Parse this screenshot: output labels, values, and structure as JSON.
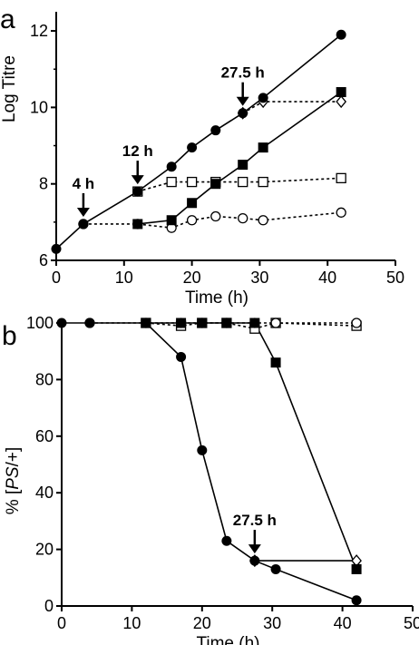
{
  "chart_data": [
    {
      "panel": "a",
      "type": "line",
      "xlabel": "Time (h)",
      "ylabel": "Log Titre",
      "xlim": [
        0,
        50
      ],
      "ylim": [
        6,
        12.5
      ],
      "xticks": [
        0,
        10,
        20,
        30,
        40,
        50
      ],
      "yticks": [
        6,
        8,
        10,
        12
      ],
      "grid": false,
      "legend": "none",
      "series": [
        {
          "marker": "filled-circle",
          "line": "solid",
          "x": [
            0,
            4,
            12,
            17,
            20,
            23.5,
            27.5,
            30.5,
            42
          ],
          "y": [
            6.3,
            6.95,
            7.8,
            8.45,
            8.95,
            9.4,
            9.85,
            10.25,
            11.9
          ]
        },
        {
          "marker": "filled-square",
          "line": "solid",
          "x": [
            12,
            17,
            20,
            23.5,
            27.5,
            30.5,
            42
          ],
          "y": [
            6.95,
            7.05,
            7.5,
            8.0,
            8.5,
            8.95,
            10.4
          ]
        },
        {
          "marker": "open-diamond",
          "line": "dashed",
          "x": [
            27.5,
            30.5,
            42
          ],
          "y": [
            9.85,
            10.15,
            10.15
          ]
        },
        {
          "marker": "open-square",
          "line": "dashed",
          "x": [
            12,
            17,
            20,
            23.5,
            27.5,
            30.5,
            42
          ],
          "y": [
            7.8,
            8.05,
            8.05,
            8.05,
            8.05,
            8.05,
            8.15
          ]
        },
        {
          "marker": "open-circle",
          "line": "dashed",
          "x": [
            4,
            12,
            17,
            20,
            23.5,
            27.5,
            30.5,
            42
          ],
          "y": [
            6.95,
            6.95,
            6.85,
            7.05,
            7.15,
            7.1,
            7.05,
            7.25
          ]
        }
      ],
      "annotations": [
        {
          "text": "4 h",
          "x": 4,
          "y": 6.95
        },
        {
          "text": "12 h",
          "x": 12,
          "y": 7.8
        },
        {
          "text": "27.5 h",
          "x": 27.5,
          "y": 9.85
        }
      ]
    },
    {
      "panel": "b",
      "type": "line",
      "xlabel": "Time (h)",
      "ylabel": "% [PS/+]",
      "xlim": [
        0,
        50
      ],
      "ylim": [
        0,
        100
      ],
      "xticks": [
        0,
        10,
        20,
        30,
        40,
        50
      ],
      "yticks": [
        0,
        20,
        40,
        60,
        80,
        100
      ],
      "grid": false,
      "legend": "none",
      "series": [
        {
          "marker": "filled-circle",
          "line": "solid",
          "x": [
            0,
            4,
            12,
            17,
            20,
            23.5,
            27.5,
            30.5,
            42
          ],
          "y": [
            100,
            100,
            100,
            88,
            55,
            23,
            16,
            13,
            2
          ]
        },
        {
          "marker": "filled-square",
          "line": "solid",
          "x": [
            12,
            17,
            20,
            23.5,
            27.5,
            30.5,
            42
          ],
          "y": [
            100,
            100,
            100,
            100,
            100,
            86,
            13
          ]
        },
        {
          "marker": "open-diamond",
          "line": "solid",
          "x": [
            27.5,
            42
          ],
          "y": [
            16,
            16
          ]
        },
        {
          "marker": "open-square",
          "line": "dashed",
          "x": [
            12,
            17,
            20,
            23.5,
            27.5,
            30.5,
            42
          ],
          "y": [
            100,
            99,
            100,
            100,
            98,
            100,
            99
          ]
        },
        {
          "marker": "open-circle",
          "line": "dashed",
          "x": [
            4,
            12,
            17,
            20,
            23.5,
            27.5,
            30.5,
            42
          ],
          "y": [
            100,
            100,
            100,
            100,
            100,
            100,
            100,
            100
          ]
        }
      ],
      "annotations": [
        {
          "text": "27.5 h",
          "x": 27.5,
          "y": 16
        }
      ]
    }
  ]
}
